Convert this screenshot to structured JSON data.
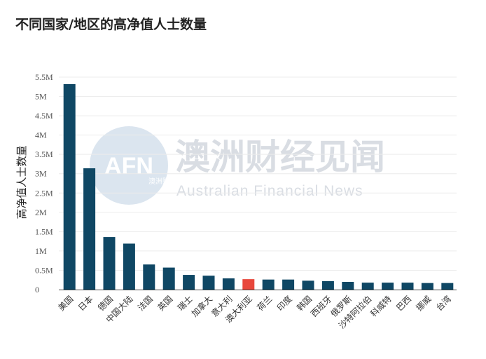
{
  "chart_data": {
    "type": "bar",
    "title": "不同国家/地区的高净值人士数量",
    "ylabel": "高净值人士数量",
    "xlabel": "",
    "ylim": [
      0,
      5500000
    ],
    "yticks": [
      {
        "value": 0,
        "label": "0"
      },
      {
        "value": 500000,
        "label": "0.5M"
      },
      {
        "value": 1000000,
        "label": "1M"
      },
      {
        "value": 1500000,
        "label": "1.5M"
      },
      {
        "value": 2000000,
        "label": "2M"
      },
      {
        "value": 2500000,
        "label": "2.5M"
      },
      {
        "value": 3000000,
        "label": "3M"
      },
      {
        "value": 3500000,
        "label": "3.5M"
      },
      {
        "value": 4000000,
        "label": "4M"
      },
      {
        "value": 4500000,
        "label": "4.5M"
      },
      {
        "value": 5000000,
        "label": "5M"
      },
      {
        "value": 5500000,
        "label": "5.5M"
      }
    ],
    "grid": true,
    "categories": [
      "美国",
      "日本",
      "德国",
      "中国大陆",
      "法国",
      "英国",
      "瑞士",
      "加拿大",
      "意大利",
      "澳大利亚",
      "荷兰",
      "印度",
      "韩国",
      "西班牙",
      "俄罗斯",
      "沙特阿拉伯",
      "科威特",
      "巴西",
      "挪威",
      "台湾"
    ],
    "values": [
      5320000,
      3140000,
      1360000,
      1190000,
      650000,
      570000,
      380000,
      360000,
      290000,
      270000,
      260000,
      260000,
      230000,
      220000,
      200000,
      180000,
      180000,
      180000,
      170000,
      170000
    ],
    "colors": {
      "default": "#0f4764",
      "highlight": "#e8473c",
      "highlight_category": "澳大利亚"
    }
  },
  "watermark": {
    "logo_text": "AFN",
    "logo_small": "澳洲财经",
    "title": "澳洲财经见闻",
    "subtitle": "Australian Financial News"
  }
}
